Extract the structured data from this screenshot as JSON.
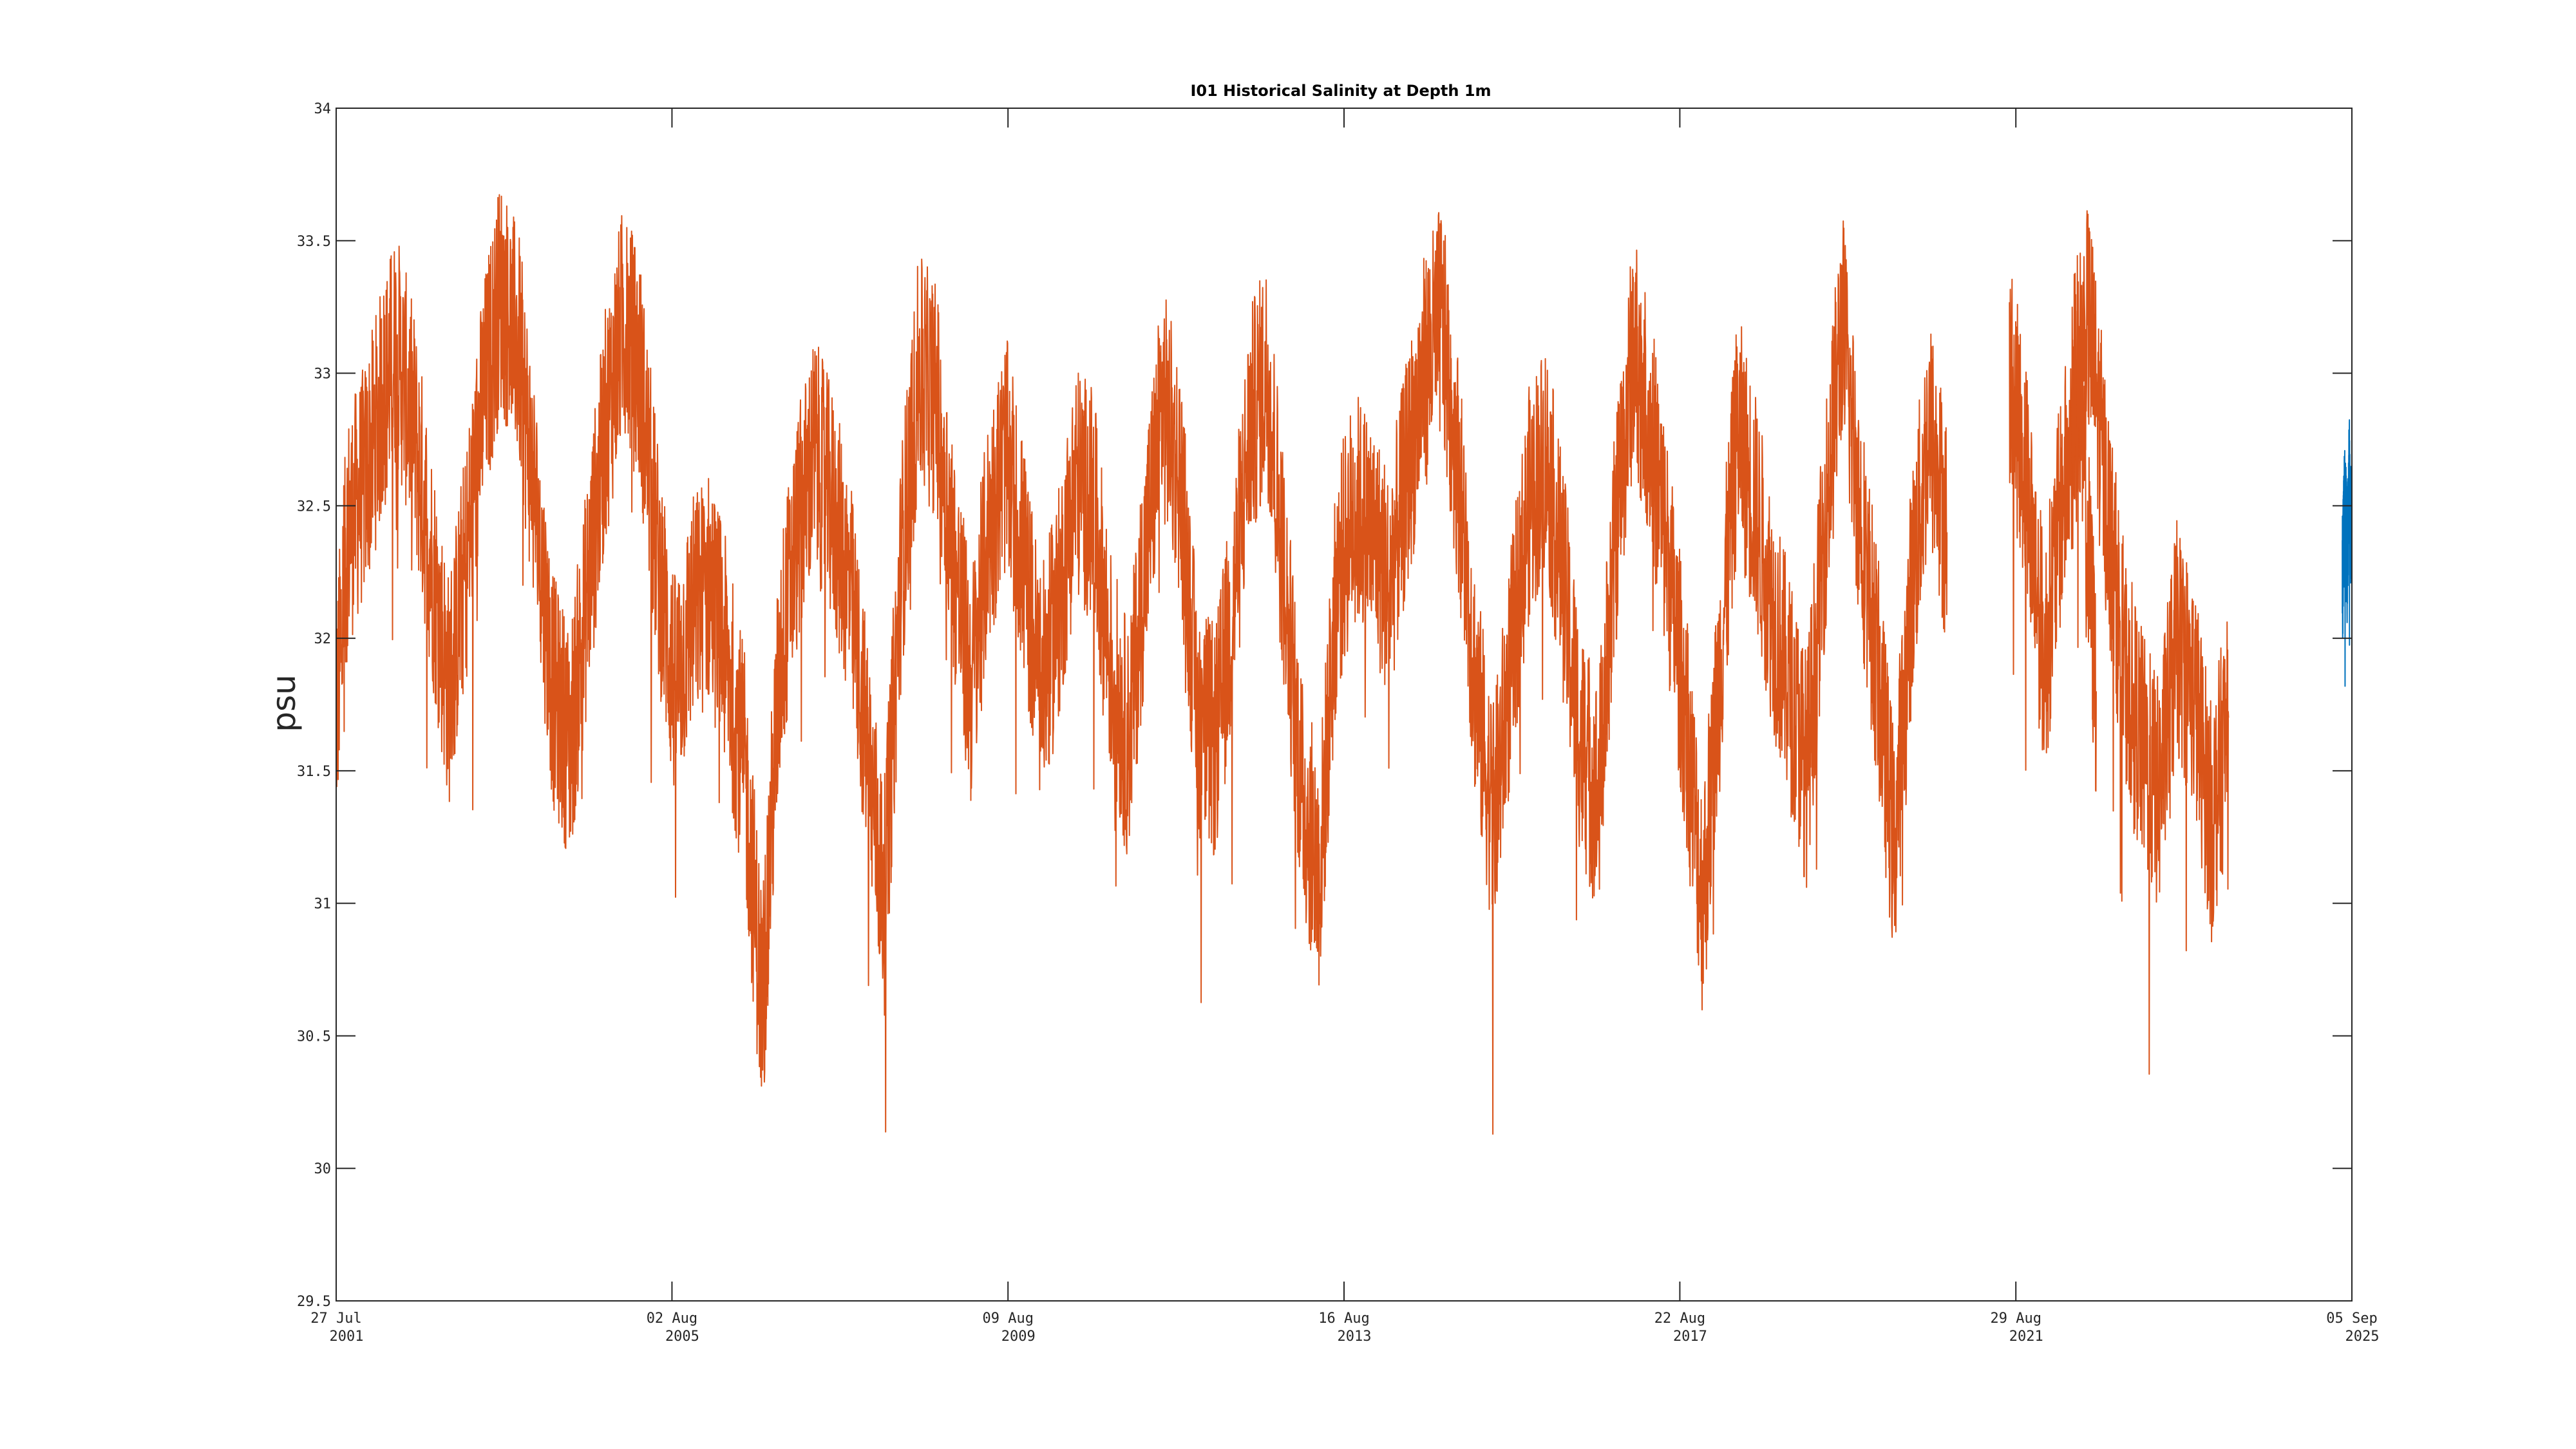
{
  "chart_data": {
    "type": "line",
    "title": "I01 Historical Salinity at Depth 1m",
    "xlabel": "",
    "ylabel": "psu",
    "ylim": [
      29.5,
      34
    ],
    "yticks": [
      "29.5",
      "30",
      "30.5",
      "31",
      "31.5",
      "32",
      "32.5",
      "33",
      "33.5",
      "34"
    ],
    "xlim": [
      "2001-07-27",
      "2025-09-05"
    ],
    "xticks": [
      {
        "date": "2001-07-27",
        "line1": "27 Jul",
        "line2": "2001"
      },
      {
        "date": "2005-08-02",
        "line1": "02 Aug",
        "line2": "2005"
      },
      {
        "date": "2009-08-09",
        "line1": "09 Aug",
        "line2": "2009"
      },
      {
        "date": "2013-08-16",
        "line1": "16 Aug",
        "line2": "2013"
      },
      {
        "date": "2017-08-22",
        "line1": "22 Aug",
        "line2": "2017"
      },
      {
        "date": "2021-08-29",
        "line1": "29 Aug",
        "line2": "2021"
      },
      {
        "date": "2025-09-05",
        "line1": "05 Sep",
        "line2": "2025"
      }
    ],
    "grid": false,
    "series": [
      {
        "color": "#D95319",
        "segments": [
          [
            [
              "2001-07-27",
              31.7
            ],
            [
              "2001-09-15",
              32.4
            ],
            [
              "2001-12-01",
              32.6
            ],
            [
              "2002-02-15",
              32.9
            ],
            [
              "2002-04-15",
              33.1
            ],
            [
              "2002-07-01",
              32.8
            ],
            [
              "2002-09-15",
              32.3
            ],
            [
              "2002-12-01",
              31.8
            ],
            [
              "2003-02-15",
              32.3
            ],
            [
              "2003-05-01",
              32.9
            ],
            [
              "2003-07-15",
              33.3
            ],
            [
              "2003-10-01",
              33.1
            ],
            [
              "2003-12-15",
              32.5
            ],
            [
              "2004-03-01",
              31.8
            ],
            [
              "2004-05-15",
              31.6
            ],
            [
              "2004-08-01",
              32.2
            ],
            [
              "2004-10-15",
              32.8
            ],
            [
              "2005-01-01",
              33.2
            ],
            [
              "2005-03-15",
              33.0
            ],
            [
              "2005-06-01",
              32.3
            ],
            [
              "2005-08-15",
              31.8
            ],
            [
              "2005-11-01",
              32.1
            ],
            [
              "2006-01-15",
              32.2
            ],
            [
              "2006-04-01",
              31.9
            ],
            [
              "2006-06-15",
              31.5
            ],
            [
              "2006-09-01",
              30.6
            ],
            [
              "2006-11-15",
              31.9
            ],
            [
              "2007-02-01",
              32.4
            ],
            [
              "2007-04-15",
              32.7
            ],
            [
              "2007-07-01",
              32.5
            ],
            [
              "2007-09-15",
              32.2
            ],
            [
              "2007-12-01",
              31.6
            ],
            [
              "2008-02-15",
              31.0
            ],
            [
              "2008-05-01",
              32.3
            ],
            [
              "2008-07-15",
              33.0
            ],
            [
              "2008-10-01",
              32.9
            ],
            [
              "2008-12-15",
              32.3
            ],
            [
              "2009-03-01",
              31.8
            ],
            [
              "2009-05-15",
              32.4
            ],
            [
              "2009-08-01",
              32.7
            ],
            [
              "2009-10-15",
              32.3
            ],
            [
              "2010-01-01",
              31.8
            ],
            [
              "2010-03-15",
              32.1
            ],
            [
              "2010-06-01",
              32.6
            ],
            [
              "2010-08-15",
              32.5
            ],
            [
              "2010-11-01",
              31.9
            ],
            [
              "2011-01-15",
              31.6
            ],
            [
              "2011-04-01",
              32.3
            ],
            [
              "2011-06-15",
              32.9
            ],
            [
              "2011-09-01",
              32.6
            ],
            [
              "2011-11-15",
              31.7
            ],
            [
              "2012-02-01",
              31.6
            ],
            [
              "2012-04-15",
              32.1
            ],
            [
              "2012-07-01",
              32.8
            ],
            [
              "2012-09-15",
              33.0
            ],
            [
              "2012-12-01",
              32.2
            ],
            [
              "2013-02-15",
              31.4
            ],
            [
              "2013-05-01",
              31.1
            ],
            [
              "2013-07-15",
              32.2
            ],
            [
              "2013-10-01",
              32.5
            ],
            [
              "2013-12-15",
              32.4
            ],
            [
              "2014-03-01",
              32.2
            ],
            [
              "2014-05-15",
              32.6
            ],
            [
              "2014-08-01",
              33.0
            ],
            [
              "2014-10-15",
              33.2
            ],
            [
              "2015-01-01",
              32.6
            ],
            [
              "2015-03-15",
              31.8
            ],
            [
              "2015-06-01",
              31.3
            ],
            [
              "2015-08-15",
              31.9
            ],
            [
              "2015-11-01",
              32.5
            ],
            [
              "2016-01-15",
              32.7
            ],
            [
              "2016-04-01",
              32.2
            ],
            [
              "2016-06-15",
              31.6
            ],
            [
              "2016-09-01",
              31.4
            ],
            [
              "2016-11-15",
              32.4
            ],
            [
              "2017-02-01",
              33.1
            ],
            [
              "2017-04-15",
              32.8
            ],
            [
              "2017-07-01",
              32.3
            ],
            [
              "2017-09-15",
              31.7
            ],
            [
              "2017-12-01",
              31.0
            ],
            [
              "2018-02-15",
              31.9
            ],
            [
              "2018-05-01",
              32.8
            ],
            [
              "2018-07-15",
              32.5
            ],
            [
              "2018-10-01",
              32.1
            ],
            [
              "2018-12-15",
              31.8
            ],
            [
              "2019-03-01",
              31.5
            ],
            [
              "2019-05-15",
              32.4
            ],
            [
              "2019-08-01",
              33.2
            ],
            [
              "2019-10-15",
              32.5
            ],
            [
              "2020-01-01",
              31.9
            ],
            [
              "2020-03-15",
              31.2
            ],
            [
              "2020-06-01",
              32.2
            ],
            [
              "2020-08-15",
              32.8
            ],
            [
              "2020-11-01",
              32.4
            ]
          ],
          [
            [
              "2021-08-01",
              33.0
            ],
            [
              "2021-10-15",
              32.6
            ],
            [
              "2022-01-01",
              31.9
            ],
            [
              "2022-03-15",
              32.5
            ],
            [
              "2022-06-01",
              32.9
            ],
            [
              "2022-08-15",
              31.8
            ]
          ],
          [
            [
              "2022-05-01",
              32.9
            ],
            [
              "2022-07-15",
              33.2
            ],
            [
              "2022-10-01",
              32.5
            ],
            [
              "2022-12-15",
              31.9
            ],
            [
              "2023-03-01",
              31.6
            ],
            [
              "2023-05-15",
              31.4
            ],
            [
              "2023-08-01",
              32.0
            ],
            [
              "2023-10-15",
              31.8
            ],
            [
              "2024-01-01",
              31.3
            ],
            [
              "2024-03-15",
              31.7
            ]
          ]
        ]
      },
      {
        "color": "#0072BD",
        "segments": [
          [
            [
              "2025-07-25",
              32.2
            ],
            [
              "2025-08-05",
              32.5
            ],
            [
              "2025-08-15",
              32.3
            ],
            [
              "2025-08-25",
              32.6
            ],
            [
              "2025-09-01",
              32.4
            ]
          ]
        ]
      }
    ]
  }
}
